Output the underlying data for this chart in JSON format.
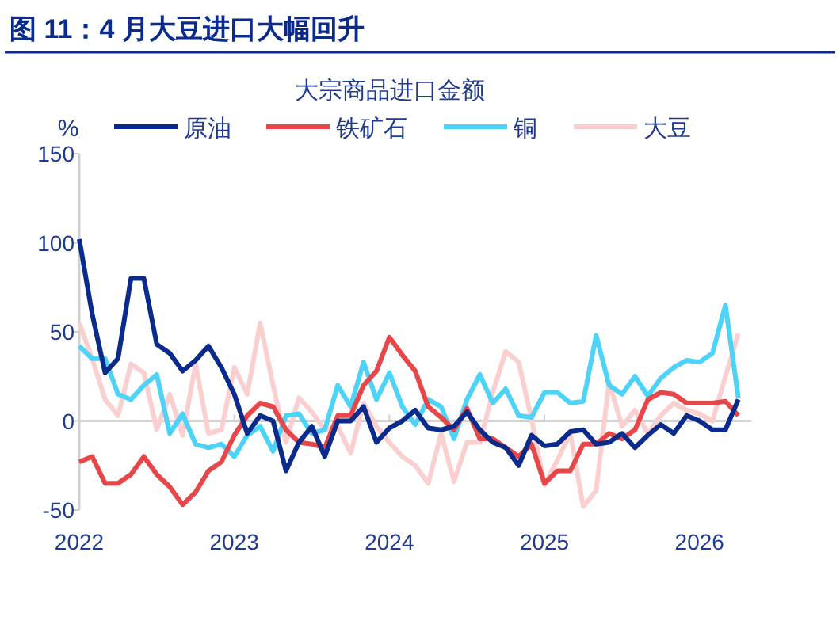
{
  "chart_data": {
    "type": "line",
    "title": "图 11：4 月大豆进口大幅回升",
    "subtitle": "大宗商品进口金额",
    "ylabel": "%",
    "x": [
      "2022-01",
      "2022-02",
      "2022-03",
      "2022-04",
      "2022-05",
      "2022-06",
      "2022-07",
      "2022-08",
      "2022-09",
      "2022-10",
      "2022-11",
      "2022-12",
      "2023-01",
      "2023-02",
      "2023-03",
      "2023-04",
      "2023-05",
      "2023-06",
      "2023-07",
      "2023-08",
      "2023-09",
      "2023-10",
      "2023-11",
      "2023-12",
      "2024-01",
      "2024-02",
      "2024-03",
      "2024-04",
      "2024-05",
      "2024-06",
      "2024-07",
      "2024-08",
      "2024-09",
      "2024-10",
      "2024-11",
      "2024-12",
      "2025-01",
      "2025-02",
      "2025-03",
      "2025-04",
      "2025-05",
      "2025-06",
      "2025-07",
      "2025-08",
      "2025-09",
      "2025-10",
      "2025-11",
      "2025-12",
      "2026-01",
      "2026-02",
      "2026-03",
      "2026-04"
    ],
    "series": [
      {
        "name": "原油",
        "color": "#0a2a8c",
        "values": [
          102,
          60,
          27,
          35,
          80,
          80,
          43,
          38,
          28,
          34,
          42,
          30,
          15,
          -7,
          3,
          0,
          -28,
          -12,
          -3,
          -20,
          0,
          0,
          8,
          -12,
          -4,
          0,
          6,
          -4,
          -5,
          -3,
          5,
          -5,
          -12,
          -15,
          -25,
          -8,
          -14,
          -13,
          -6,
          -5,
          -13,
          -12,
          -7,
          -15,
          -8,
          -2,
          -7,
          3,
          0,
          -5,
          -5,
          12
        ]
      },
      {
        "name": "铁矿石",
        "color": "#e8474a",
        "values": [
          -23,
          -20,
          -35,
          -35,
          -30,
          -20,
          -30,
          -37,
          -47,
          -40,
          -28,
          -23,
          -8,
          3,
          10,
          8,
          -5,
          -12,
          -13,
          -15,
          3,
          3,
          20,
          28,
          47,
          37,
          28,
          8,
          2,
          -5,
          7,
          -10,
          -10,
          -15,
          -20,
          -13,
          -35,
          -28,
          -28,
          -13,
          -13,
          -7,
          -10,
          -5,
          12,
          16,
          15,
          10,
          10,
          10,
          11,
          3
        ]
      },
      {
        "name": "铜",
        "color": "#4dd2f8",
        "values": [
          42,
          35,
          35,
          15,
          12,
          20,
          26,
          -7,
          4,
          -13,
          -15,
          -13,
          -20,
          -8,
          -3,
          -17,
          3,
          4,
          -7,
          -5,
          20,
          8,
          33,
          12,
          27,
          8,
          -2,
          12,
          8,
          -10,
          12,
          26,
          10,
          18,
          3,
          2,
          16,
          16,
          10,
          11,
          48,
          20,
          15,
          25,
          14,
          24,
          30,
          34,
          33,
          38,
          65,
          13
        ]
      },
      {
        "name": "大豆",
        "color": "#f9cfd0",
        "values": [
          55,
          35,
          12,
          3,
          32,
          27,
          -5,
          15,
          -8,
          32,
          -7,
          -5,
          30,
          15,
          55,
          20,
          -12,
          13,
          5,
          -5,
          -3,
          -18,
          10,
          -3,
          -12,
          -20,
          -25,
          -35,
          -7,
          -34,
          -12,
          -12,
          16,
          39,
          33,
          1,
          -36,
          -22,
          -7,
          -48,
          -39,
          22,
          -3,
          6,
          -7,
          3,
          10,
          6,
          4,
          0,
          25,
          49
        ]
      }
    ],
    "xlim": [
      "2022-01",
      "2026-05"
    ],
    "xticks": [
      {
        "value": "2022-01",
        "label": "2022"
      },
      {
        "value": "2023-01",
        "label": "2023"
      },
      {
        "value": "2024-01",
        "label": "2024"
      },
      {
        "value": "2025-01",
        "label": "2025"
      },
      {
        "value": "2026-01",
        "label": "2026"
      }
    ],
    "ylim": [
      -50,
      150
    ],
    "yticks": [
      -50,
      0,
      50,
      100,
      150
    ],
    "ref_lines": [
      {
        "axis": "y",
        "value": 0,
        "color": "#d0d0d0"
      }
    ],
    "legend": "top"
  }
}
